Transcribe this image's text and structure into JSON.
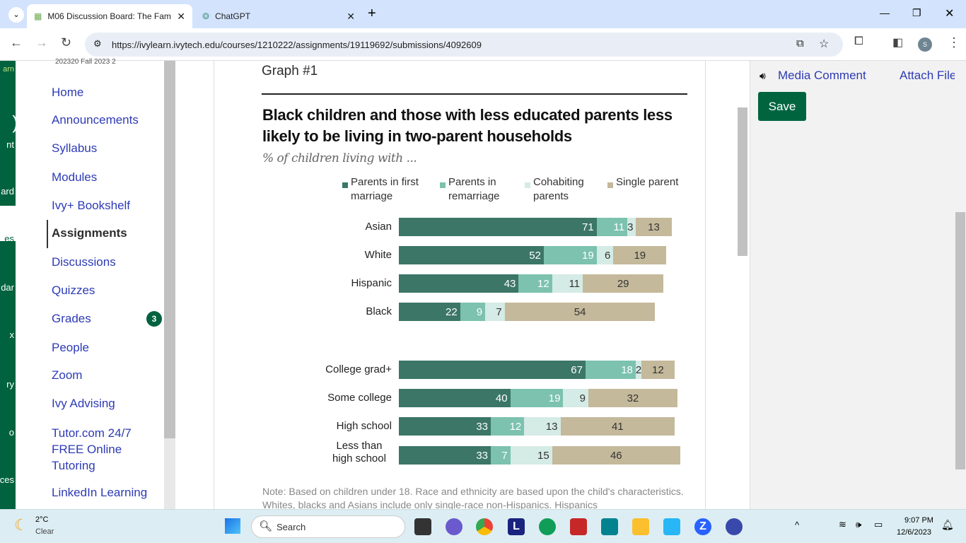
{
  "browser": {
    "tabs": [
      {
        "title": "M06 Discussion Board: The Fam",
        "active": true
      },
      {
        "title": "ChatGPT",
        "active": false
      }
    ],
    "url": "https://ivylearn.ivytech.edu/courses/1210222/assignments/19119692/submissions/4092609",
    "profile_initial": "S"
  },
  "global_nav": {
    "items": [
      "arn",
      "nt",
      "ard",
      "es",
      "dar",
      "x",
      "ry",
      "o",
      "ces"
    ]
  },
  "course_nav": {
    "term": "202320 Fall 2023 2",
    "items": [
      {
        "label": "Home"
      },
      {
        "label": "Announcements"
      },
      {
        "label": "Syllabus"
      },
      {
        "label": "Modules"
      },
      {
        "label": "Ivy+ Bookshelf"
      },
      {
        "label": "Assignments",
        "active": true
      },
      {
        "label": "Discussions"
      },
      {
        "label": "Quizzes"
      },
      {
        "label": "Grades",
        "badge": "3"
      },
      {
        "label": "People"
      },
      {
        "label": "Zoom"
      },
      {
        "label": "Ivy Advising"
      },
      {
        "label": "Tutor.com 24/7 FREE Online Tutoring"
      },
      {
        "label": "LinkedIn Learning"
      }
    ]
  },
  "main": {
    "heading": "Graph #1",
    "note": "Note: Based on children under 18. Race and ethnicity are based upon the child's characteristics. Whites, blacks and Asians include only single-race non-Hispanics. Hispanics"
  },
  "right_panel": {
    "media_comment": "Media Comment",
    "attach_file": "Attach File",
    "save": "Save"
  },
  "chart_data": {
    "type": "bar",
    "stacked": true,
    "orientation": "horizontal",
    "title": "Black children and those with less educated parents less likely to be living in two-parent households",
    "subtitle": "% of children living with ...",
    "legend_placement": "top",
    "series": [
      {
        "name": "Parents in first marriage",
        "color": "#3b7667",
        "values": [
          71,
          52,
          43,
          22,
          67,
          40,
          33,
          33
        ]
      },
      {
        "name": "Parents in remarriage",
        "color": "#7cc2ae",
        "values": [
          11,
          19,
          12,
          9,
          18,
          19,
          12,
          7
        ]
      },
      {
        "name": "Cohabiting parents",
        "color": "#d5ebe5",
        "values": [
          3,
          6,
          11,
          7,
          2,
          9,
          13,
          15
        ]
      },
      {
        "name": "Single parent",
        "color": "#c4b99b",
        "values": [
          13,
          19,
          29,
          54,
          12,
          32,
          41,
          46
        ]
      }
    ],
    "categories": [
      "Asian",
      "White",
      "Hispanic",
      "Black",
      "College grad+",
      "Some college",
      "High school",
      "Less than high school"
    ]
  },
  "taskbar": {
    "weather_temp": "2°C",
    "weather_desc": "Clear",
    "search": "Search",
    "time": "9:07 PM",
    "date": "12/6/2023"
  }
}
